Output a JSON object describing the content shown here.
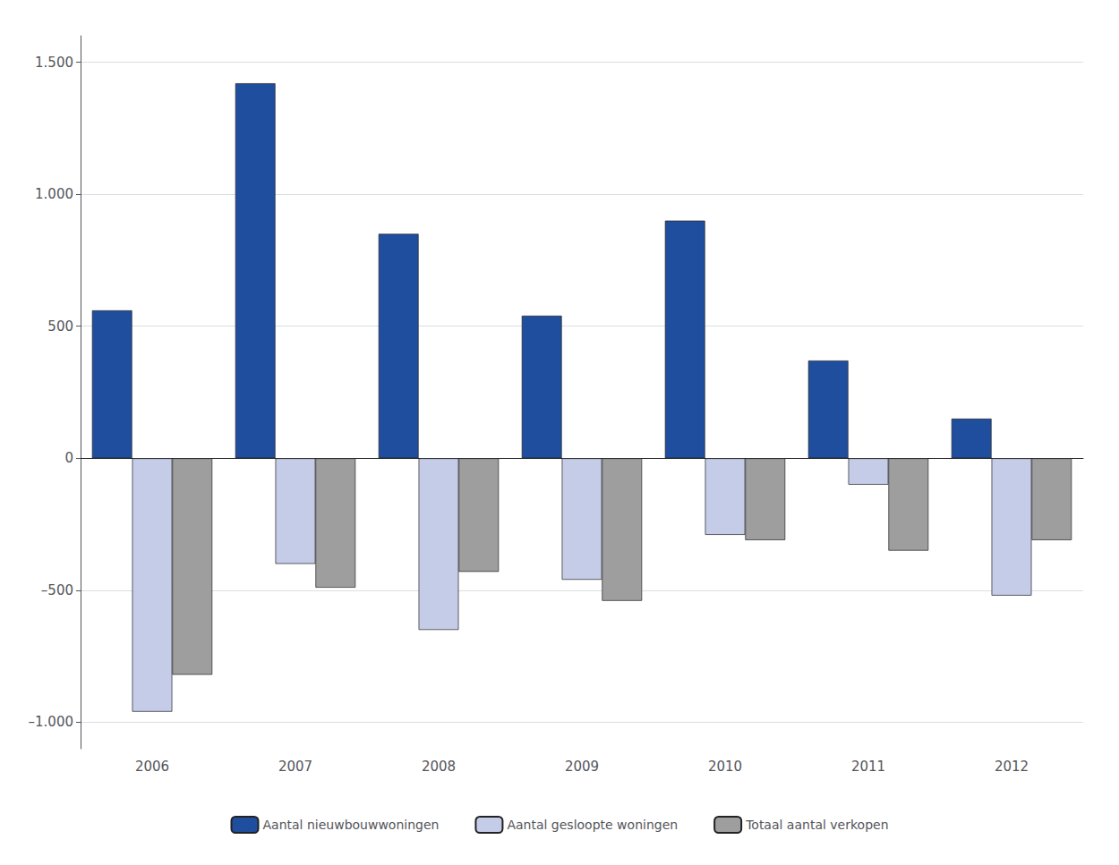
{
  "chart_data": {
    "type": "bar",
    "categories": [
      "2006",
      "2007",
      "2008",
      "2009",
      "2010",
      "2011",
      "2012"
    ],
    "series": [
      {
        "name": "Aantal nieuwbouwwoningen",
        "color": "#1f4e9e",
        "values": [
          560,
          1420,
          850,
          540,
          900,
          370,
          150
        ]
      },
      {
        "name": "Aantal gesloopte woningen",
        "color": "#c5cce8",
        "values": [
          -960,
          -400,
          -650,
          -460,
          -290,
          -100,
          -520
        ]
      },
      {
        "name": "Totaal aantal verkopen",
        "color": "#9e9e9e",
        "values": [
          -820,
          -490,
          -430,
          -540,
          -310,
          -350,
          -310
        ]
      }
    ],
    "ylim": [
      -1100,
      1600
    ],
    "yticks": [
      {
        "value": -1000,
        "label": "–1.000"
      },
      {
        "value": -500,
        "label": "–500"
      },
      0,
      500,
      {
        "value": 1000,
        "label": "1.000"
      },
      {
        "value": 1500,
        "label": "1.500"
      }
    ],
    "grid": true,
    "legend": "bottom"
  }
}
